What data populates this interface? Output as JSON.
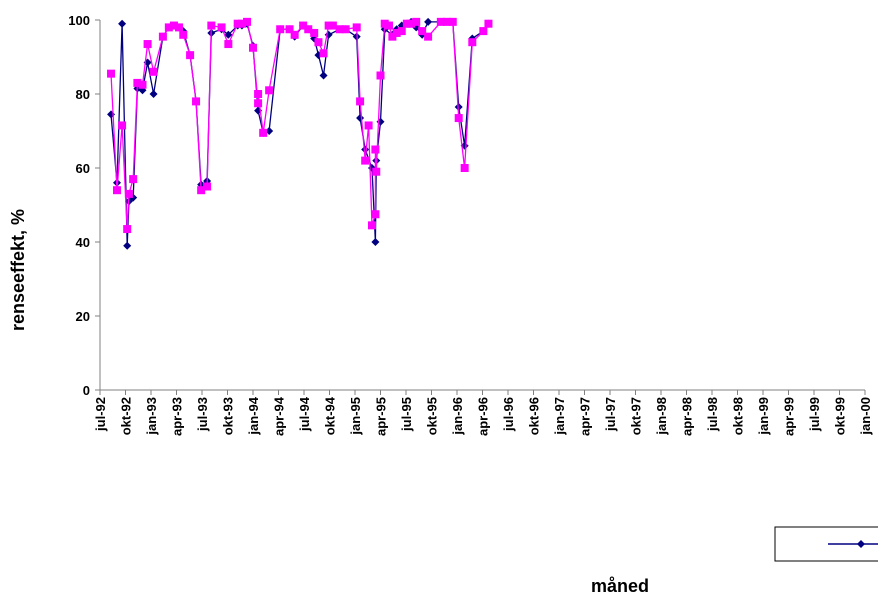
{
  "chart_data": {
    "type": "line",
    "title": "",
    "xlabel": "måned",
    "ylabel": "renseeffekt, %",
    "ylim": [
      0,
      100
    ],
    "y_ticks": [
      0,
      20,
      40,
      60,
      80,
      100
    ],
    "x_tick_labels": [
      "jul-92",
      "okt-92",
      "jan-93",
      "apr-93",
      "jul-93",
      "okt-93",
      "jan-94",
      "apr-94",
      "jul-94",
      "okt-94",
      "jan-95",
      "apr-95",
      "jul-95",
      "okt-95",
      "jan-96",
      "apr-96",
      "jul-96",
      "okt-96",
      "jan-97",
      "apr-97",
      "jul-97",
      "okt-97",
      "jan-98",
      "apr-98",
      "jul-98",
      "okt-98",
      "jan-99",
      "apr-99",
      "jul-99",
      "okt-99",
      "jan-00"
    ],
    "x_unit": "months since jul-92",
    "grid": false,
    "legend_position": "bottom-right",
    "series": [
      {
        "color": "#000080",
        "marker": "diamond",
        "points": [
          [
            1.3,
            74.5
          ],
          [
            2.0,
            56.0
          ],
          [
            2.6,
            99.0
          ],
          [
            3.2,
            39.0
          ],
          [
            3.4,
            51.0
          ],
          [
            3.9,
            52.0
          ],
          [
            4.4,
            81.5
          ],
          [
            5.0,
            81.0
          ],
          [
            5.6,
            88.5
          ],
          [
            6.3,
            80.0
          ],
          [
            7.4,
            95.5
          ],
          [
            8.1,
            98.0
          ],
          [
            8.7,
            98.5
          ],
          [
            9.3,
            98.0
          ],
          [
            9.8,
            97.0
          ],
          [
            10.6,
            90.5
          ],
          [
            11.3,
            78.0
          ],
          [
            11.9,
            55.5
          ],
          [
            12.6,
            56.5
          ],
          [
            13.1,
            96.5
          ],
          [
            14.3,
            97.5
          ],
          [
            15.1,
            96.0
          ],
          [
            16.2,
            98.5
          ],
          [
            16.7,
            98.5
          ],
          [
            17.3,
            99.0
          ],
          [
            18.0,
            93.0
          ],
          [
            18.6,
            75.5
          ],
          [
            19.2,
            69.5
          ],
          [
            19.9,
            70.0
          ],
          [
            21.2,
            97.5
          ],
          [
            22.3,
            97.5
          ],
          [
            22.9,
            95.5
          ],
          [
            23.9,
            98.5
          ],
          [
            24.5,
            97.5
          ],
          [
            25.2,
            95.0
          ],
          [
            25.7,
            90.5
          ],
          [
            26.3,
            85.0
          ],
          [
            26.9,
            96.0
          ],
          [
            28.2,
            97.5
          ],
          [
            28.9,
            97.5
          ],
          [
            30.2,
            95.5
          ],
          [
            30.6,
            73.5
          ],
          [
            31.2,
            65.0
          ],
          [
            32.0,
            60.0
          ],
          [
            32.4,
            40.0
          ],
          [
            32.5,
            62.0
          ],
          [
            33.0,
            72.5
          ],
          [
            33.5,
            97.5
          ],
          [
            34.4,
            96.0
          ],
          [
            34.9,
            97.5
          ],
          [
            35.5,
            98.5
          ],
          [
            36.1,
            99.0
          ],
          [
            36.6,
            99.5
          ],
          [
            37.2,
            98.0
          ],
          [
            37.9,
            96.0
          ],
          [
            38.6,
            99.5
          ],
          [
            40.1,
            99.5
          ],
          [
            40.8,
            99.5
          ],
          [
            41.5,
            99.5
          ],
          [
            42.2,
            76.5
          ],
          [
            42.9,
            66.0
          ],
          [
            43.8,
            95.0
          ],
          [
            45.1,
            97.0
          ],
          [
            45.7,
            99.0
          ]
        ]
      },
      {
        "color": "#FF00FF",
        "marker": "square",
        "points": [
          [
            1.3,
            85.5
          ],
          [
            2.0,
            54.0
          ],
          [
            2.6,
            71.5
          ],
          [
            3.2,
            43.5
          ],
          [
            3.4,
            53.0
          ],
          [
            3.9,
            57.0
          ],
          [
            4.4,
            83.0
          ],
          [
            5.0,
            82.5
          ],
          [
            5.6,
            93.5
          ],
          [
            6.3,
            86.0
          ],
          [
            7.4,
            95.5
          ],
          [
            8.1,
            98.0
          ],
          [
            8.7,
            98.5
          ],
          [
            9.3,
            98.0
          ],
          [
            9.8,
            96.0
          ],
          [
            10.6,
            90.5
          ],
          [
            11.3,
            78.0
          ],
          [
            11.9,
            54.0
          ],
          [
            12.6,
            55.0
          ],
          [
            13.1,
            98.5
          ],
          [
            14.3,
            98.0
          ],
          [
            15.1,
            93.5
          ],
          [
            16.2,
            99.0
          ],
          [
            16.7,
            99.0
          ],
          [
            17.3,
            99.5
          ],
          [
            18.0,
            92.5
          ],
          [
            18.6,
            77.5
          ],
          [
            18.6,
            80.0
          ],
          [
            19.2,
            69.5
          ],
          [
            19.9,
            81.0
          ],
          [
            21.2,
            97.5
          ],
          [
            22.3,
            97.5
          ],
          [
            22.9,
            96.0
          ],
          [
            23.9,
            98.5
          ],
          [
            24.5,
            97.5
          ],
          [
            25.2,
            96.5
          ],
          [
            25.7,
            94.0
          ],
          [
            26.3,
            91.0
          ],
          [
            26.9,
            98.5
          ],
          [
            27.4,
            98.5
          ],
          [
            28.2,
            97.5
          ],
          [
            28.9,
            97.5
          ],
          [
            30.2,
            98.0
          ],
          [
            30.6,
            78.0
          ],
          [
            31.2,
            62.0
          ],
          [
            31.6,
            71.5
          ],
          [
            32.0,
            44.5
          ],
          [
            32.4,
            47.5
          ],
          [
            32.4,
            65.0
          ],
          [
            32.5,
            59.0
          ],
          [
            33.0,
            85.0
          ],
          [
            33.5,
            99.0
          ],
          [
            34.0,
            98.5
          ],
          [
            34.4,
            95.5
          ],
          [
            34.9,
            96.5
          ],
          [
            35.5,
            97.0
          ],
          [
            36.1,
            99.0
          ],
          [
            36.6,
            99.0
          ],
          [
            37.2,
            99.5
          ],
          [
            37.9,
            97.0
          ],
          [
            38.6,
            95.5
          ],
          [
            40.1,
            99.5
          ],
          [
            40.8,
            99.5
          ],
          [
            41.5,
            99.5
          ],
          [
            42.2,
            73.5
          ],
          [
            42.9,
            60.0
          ],
          [
            43.8,
            94.0
          ],
          [
            45.1,
            97.0
          ],
          [
            45.7,
            99.0
          ]
        ]
      }
    ]
  }
}
